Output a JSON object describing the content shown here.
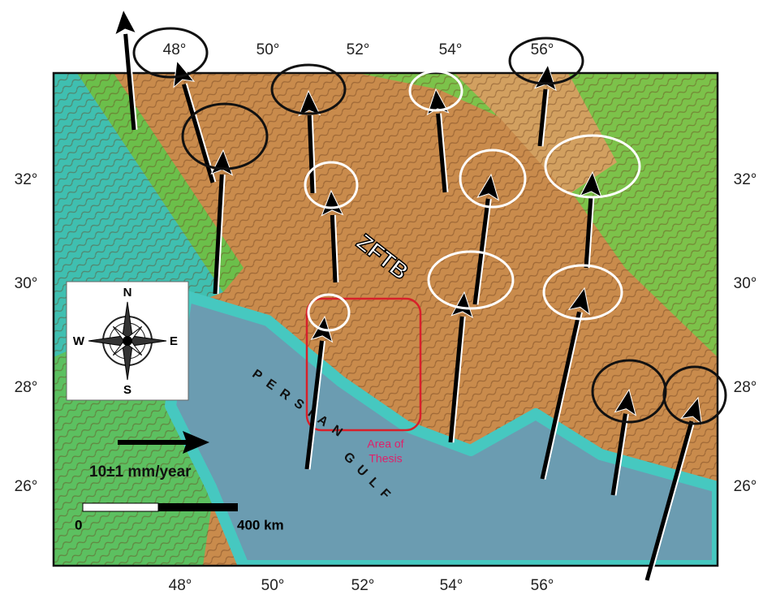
{
  "map": {
    "top_labels": [
      "48°",
      "50°",
      "52°",
      "54°",
      "56°"
    ],
    "bottom_labels": [
      "48°",
      "50°",
      "52°",
      "54°",
      "56°"
    ],
    "left_labels": [
      "32°",
      "30°",
      "28°",
      "26°"
    ],
    "right_labels": [
      "32°",
      "30°",
      "28°",
      "26°"
    ],
    "region_label": "ZFTB",
    "sea_label": [
      "PERSIAN",
      "GULF"
    ],
    "study_area_label": [
      "Area of",
      "Thesis"
    ],
    "compass": {
      "north": "N",
      "south": "S",
      "east": "E",
      "west": "W"
    },
    "velocity_scale": "10±1 mm/year",
    "distance_scale": {
      "start": "0",
      "end": "400 km"
    }
  }
}
